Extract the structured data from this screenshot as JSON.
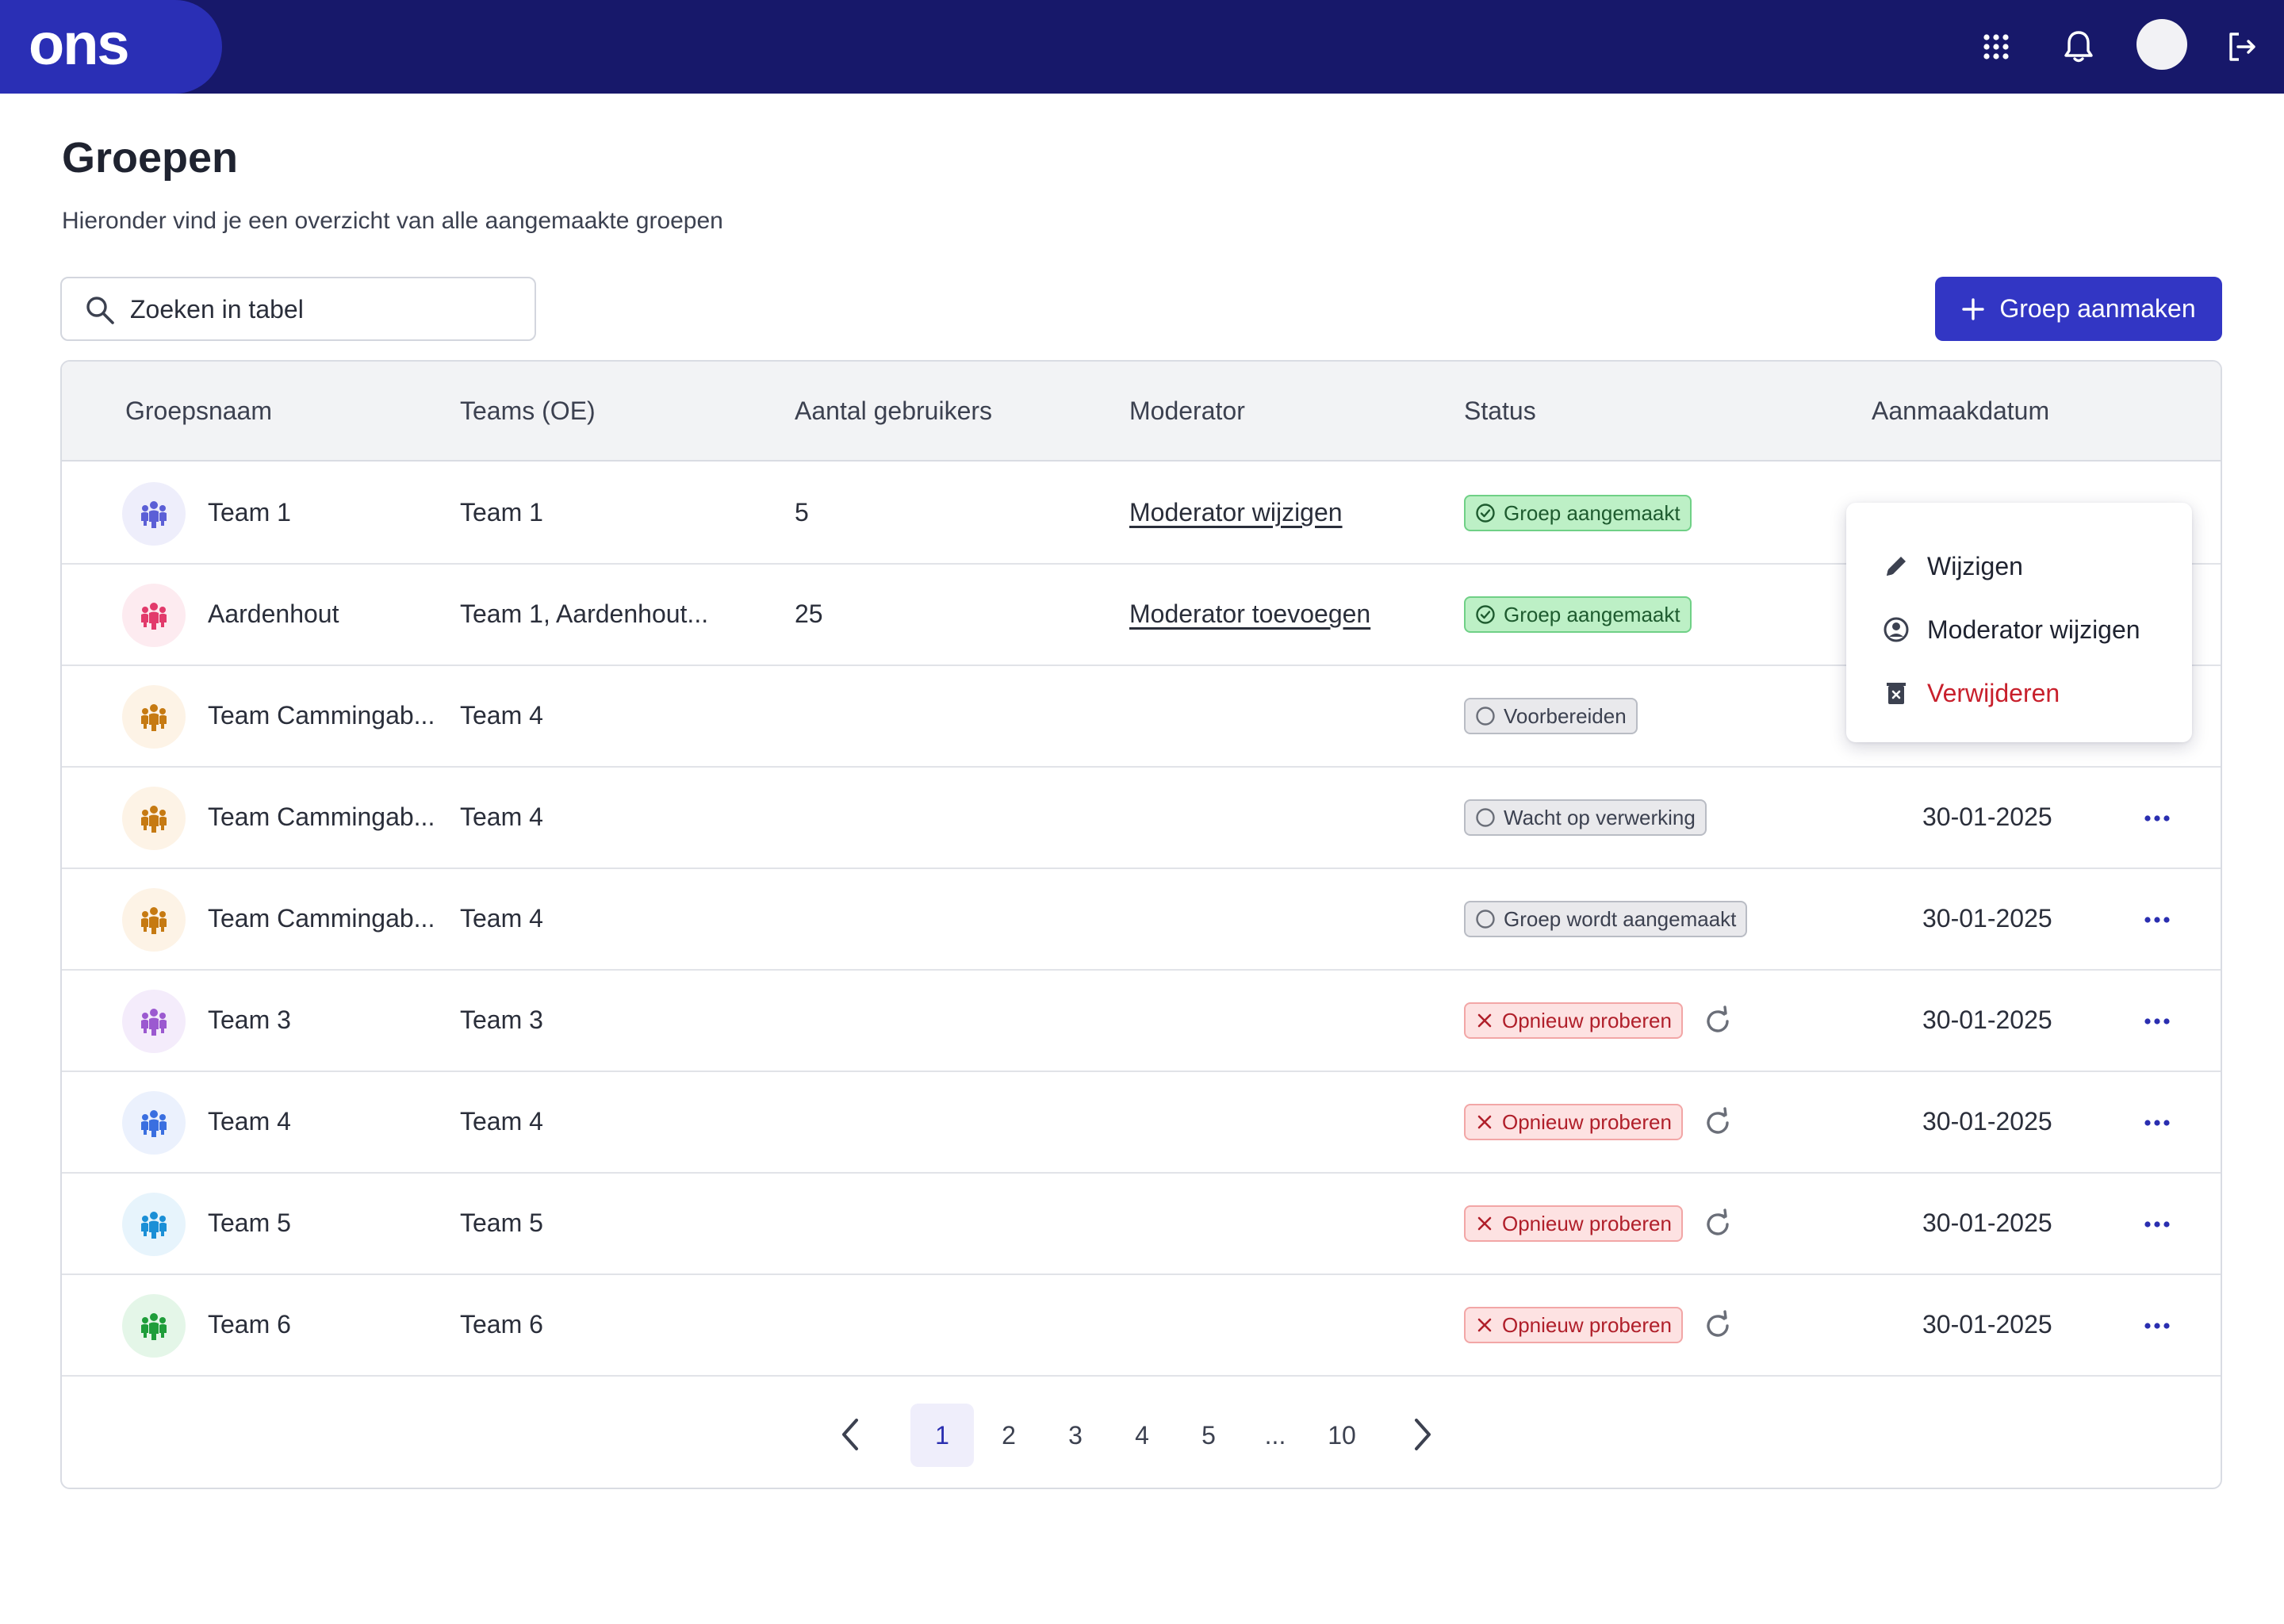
{
  "header": {
    "logo": "ons",
    "icons": [
      "apps-grid-icon",
      "bell-icon",
      "avatar",
      "logout-icon"
    ]
  },
  "page": {
    "title": "Groepen",
    "subtitle": "Hieronder vind je een overzicht van alle aangemaakte groepen"
  },
  "search": {
    "placeholder": "Zoeken in tabel"
  },
  "toolbar": {
    "create_label": "Groep aanmaken"
  },
  "table": {
    "columns": [
      "Groepsnaam",
      "Teams (OE)",
      "Aantal gebruikers",
      "Moderator",
      "Status",
      "Aanmaakdatum"
    ],
    "rows": [
      {
        "name": "Team 1",
        "teams": "Team 1",
        "users": "5",
        "moderator": "Moderator wijzigen",
        "status": "Groep aangemaakt",
        "status_type": "ok",
        "date": "",
        "icon_color": "#5b5fd6",
        "icon_bg": "#eeeefb"
      },
      {
        "name": "Aardenhout",
        "teams": "Team 1, Aardenhout...",
        "users": "25",
        "moderator": "Moderator toevoegen",
        "status": "Groep aangemaakt",
        "status_type": "ok",
        "date": "",
        "icon_color": "#e23a6b",
        "icon_bg": "#fdebf0"
      },
      {
        "name": "Team Cammingab...",
        "teams": "Team 4",
        "users": "",
        "moderator": "",
        "status": "Voorbereiden",
        "status_type": "wait",
        "date": "",
        "icon_color": "#c67a12",
        "icon_bg": "#fdf3e6"
      },
      {
        "name": "Team Cammingab...",
        "teams": "Team 4",
        "users": "",
        "moderator": "",
        "status": "Wacht op verwerking",
        "status_type": "wait",
        "date": "30-01-2025",
        "icon_color": "#c67a12",
        "icon_bg": "#fdf3e6"
      },
      {
        "name": "Team Cammingab...",
        "teams": "Team 4",
        "users": "",
        "moderator": "",
        "status": "Groep wordt aangemaakt",
        "status_type": "wait",
        "date": "30-01-2025",
        "icon_color": "#c67a12",
        "icon_bg": "#fdf3e6"
      },
      {
        "name": "Team 3",
        "teams": "Team 3",
        "users": "",
        "moderator": "",
        "status": "Opnieuw proberen",
        "status_type": "err",
        "date": "30-01-2025",
        "icon_color": "#9b59d0",
        "icon_bg": "#f4ecfb"
      },
      {
        "name": "Team 4",
        "teams": "Team 4",
        "users": "",
        "moderator": "",
        "status": "Opnieuw proberen",
        "status_type": "err",
        "date": "30-01-2025",
        "icon_color": "#3a6fe0",
        "icon_bg": "#ebf1fd"
      },
      {
        "name": "Team 5",
        "teams": "Team 5",
        "users": "",
        "moderator": "",
        "status": "Opnieuw proberen",
        "status_type": "err",
        "date": "30-01-2025",
        "icon_color": "#1b8fd6",
        "icon_bg": "#e7f4fc"
      },
      {
        "name": "Team 6",
        "teams": "Team 6",
        "users": "",
        "moderator": "",
        "status": "Opnieuw proberen",
        "status_type": "err",
        "date": "30-01-2025",
        "icon_color": "#1f9d3a",
        "icon_bg": "#e4f6e8"
      }
    ]
  },
  "pagination": {
    "pages": [
      "1",
      "2",
      "3",
      "4",
      "5",
      "...",
      "10"
    ],
    "current": "1"
  },
  "context_menu": {
    "items": [
      {
        "label": "Wijzigen",
        "icon": "pencil-icon"
      },
      {
        "label": "Moderator wijzigen",
        "icon": "user-circle-icon"
      },
      {
        "label": "Verwijderen",
        "icon": "trash-icon",
        "danger": true
      }
    ]
  },
  "colors": {
    "header_bg": "#17186a",
    "primary": "#3236c4",
    "ok": "#bdf0c6",
    "error": "#fde2e2"
  }
}
